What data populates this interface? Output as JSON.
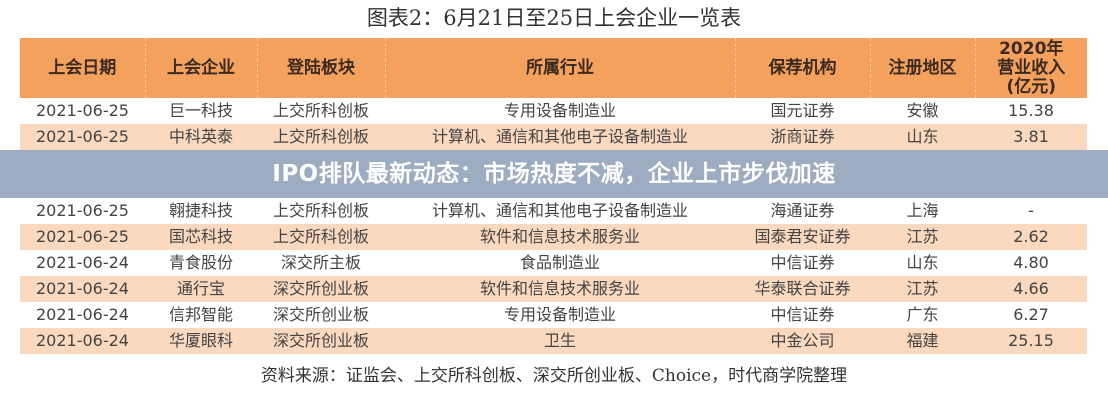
{
  "title": "图表2：6月21日至25日上会企业一览表",
  "table": {
    "headers": [
      "上会日期",
      "上会企业",
      "登陆板块",
      "所属行业",
      "保荐机构",
      "注册地区",
      "2020年\n营业收入\n(亿元)"
    ],
    "rows": [
      [
        "2021-06-25",
        "巨一科技",
        "上交所科创板",
        "专用设备制造业",
        "国元证券",
        "安徽",
        "15.38"
      ],
      [
        "2021-06-25",
        "中科英泰",
        "上交所科创板",
        "计算机、通信和其他电子设备制造业",
        "浙商证券",
        "山东",
        "3.81"
      ],
      [
        "2021-06-25",
        "翱捷科技",
        "上交所科创板",
        "计算机、通信和其他电子设备制造业",
        "海通证券",
        "上海",
        "-"
      ],
      [
        "2021-06-25",
        "国芯科技",
        "上交所科创板",
        "软件和信息技术服务业",
        "国泰君安证券",
        "江苏",
        "2.62"
      ],
      [
        "2021-06-24",
        "青食股份",
        "深交所主板",
        "食品制造业",
        "中信证券",
        "山东",
        "4.80"
      ],
      [
        "2021-06-24",
        "通行宝",
        "深交所创业板",
        "软件和信息技术服务业",
        "华泰联合证券",
        "江苏",
        "4.66"
      ],
      [
        "2021-06-24",
        "信邦智能",
        "深交所创业板",
        "专用设备制造业",
        "中信证券",
        "广东",
        "6.27"
      ],
      [
        "2021-06-24",
        "华厦眼科",
        "深交所创业板",
        "卫生",
        "中金公司",
        "福建",
        "25.15"
      ]
    ]
  },
  "source": "资料来源：证监会、上交所科创板、深交所创业板、Choice，时代商学院整理",
  "banner": "IPO排队最新动态：市场热度不减，企业上市步伐加速",
  "colors": {
    "header": "#f5a15e",
    "stripe": "#fbd9bf",
    "banner": "#8c9eb6"
  }
}
